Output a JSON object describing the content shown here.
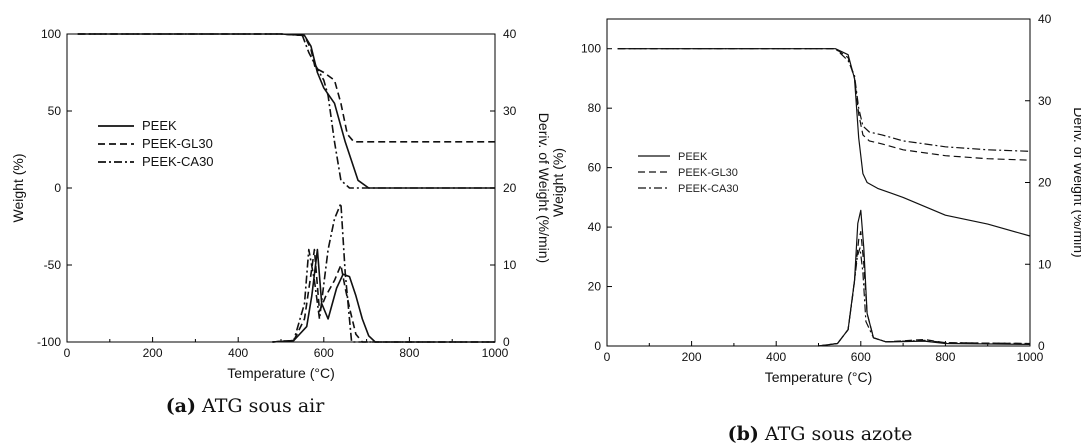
{
  "chart_data": [
    {
      "type": "line",
      "caption_label": "(a)",
      "caption_text": "ATG sous air",
      "xlabel": "Temperature (°C)",
      "ylabel": "Weight (%)",
      "y2label": "Deriv. of Weight (%/min)",
      "xlim": [
        0,
        1000
      ],
      "ylim": [
        -100,
        100
      ],
      "y2lim": [
        0,
        40
      ],
      "xticks": [
        "0",
        "200",
        "400",
        "600",
        "800",
        "1000"
      ],
      "yticks": [
        "-100",
        "-50",
        "0",
        "50",
        "100"
      ],
      "y2ticks": [
        "0",
        "10",
        "20",
        "30",
        "40"
      ],
      "grid": false,
      "legend": "middle-left",
      "series": [
        {
          "name": "PEEK",
          "style": "solid",
          "axis": "left",
          "x": [
            25,
            500,
            555,
            570,
            585,
            600,
            625,
            650,
            680,
            705,
            750,
            1000
          ],
          "y": [
            100,
            100,
            99,
            92,
            75,
            65,
            55,
            30,
            5,
            0,
            0,
            0
          ]
        },
        {
          "name": "PEEK-GL30",
          "style": "dashed",
          "axis": "left",
          "x": [
            25,
            500,
            555,
            570,
            580,
            600,
            625,
            640,
            655,
            670,
            1000
          ],
          "y": [
            100,
            100,
            99,
            90,
            78,
            75,
            70,
            55,
            35,
            30,
            30
          ]
        },
        {
          "name": "PEEK-CA30",
          "style": "dashdot",
          "axis": "left",
          "x": [
            25,
            500,
            550,
            565,
            580,
            600,
            610,
            625,
            640,
            660,
            1000
          ],
          "y": [
            100,
            100,
            99,
            88,
            80,
            70,
            60,
            30,
            5,
            0,
            0
          ]
        },
        {
          "name": "PEEK",
          "style": "solid",
          "axis": "right",
          "x": [
            480,
            530,
            560,
            572,
            585,
            595,
            610,
            630,
            645,
            660,
            675,
            690,
            705,
            720,
            1000
          ],
          "y": [
            0,
            0.2,
            2,
            6,
            12,
            5,
            3,
            7,
            8.8,
            8.5,
            6,
            3,
            0.8,
            0,
            0
          ]
        },
        {
          "name": "PEEK-GL30",
          "style": "dashed",
          "axis": "right",
          "x": [
            480,
            530,
            555,
            568,
            578,
            590,
            605,
            625,
            640,
            650,
            662,
            675,
            690,
            1000
          ],
          "y": [
            0,
            0.2,
            3,
            8,
            12,
            4,
            6,
            8,
            10,
            7,
            4,
            1,
            0,
            0
          ]
        },
        {
          "name": "PEEK-CA30",
          "style": "dashdot",
          "axis": "right",
          "x": [
            480,
            530,
            555,
            565,
            578,
            590,
            610,
            625,
            640,
            650,
            665,
            1000
          ],
          "y": [
            0,
            0.2,
            5,
            12,
            8,
            3,
            12,
            16,
            18,
            9,
            0,
            0
          ]
        }
      ]
    },
    {
      "type": "line",
      "caption_label": "(b)",
      "caption_text": "ATG sous azote",
      "xlabel": "Temperature (°C)",
      "ylabel": "Weight (%)",
      "y2label": "Deriv. of Weight (%/min)",
      "xlim": [
        0,
        1000
      ],
      "ylim": [
        0,
        110
      ],
      "y2lim": [
        0,
        40
      ],
      "xticks": [
        "0",
        "200",
        "400",
        "600",
        "800",
        "1000"
      ],
      "yticks": [
        "0",
        "20",
        "40",
        "60",
        "80",
        "100"
      ],
      "y2ticks": [
        "0",
        "10",
        "20",
        "30",
        "40"
      ],
      "grid": false,
      "legend": "middle-left",
      "series": [
        {
          "name": "PEEK",
          "style": "solid",
          "axis": "left",
          "x": [
            25,
            540,
            570,
            585,
            595,
            605,
            615,
            640,
            700,
            800,
            900,
            1000
          ],
          "y": [
            100,
            100,
            98,
            90,
            70,
            58,
            55,
            53,
            50,
            44,
            41,
            37
          ]
        },
        {
          "name": "PEEK-GL30",
          "style": "dashed",
          "axis": "left",
          "x": [
            25,
            540,
            570,
            585,
            595,
            605,
            620,
            650,
            700,
            800,
            900,
            1000
          ],
          "y": [
            100,
            100,
            97,
            90,
            78,
            71,
            69,
            68,
            66,
            64,
            63,
            62.5
          ]
        },
        {
          "name": "PEEK-CA30",
          "style": "dashdot",
          "axis": "left",
          "x": [
            25,
            540,
            570,
            585,
            595,
            605,
            620,
            650,
            700,
            800,
            900,
            1000
          ],
          "y": [
            100,
            100,
            96,
            91,
            80,
            74,
            72,
            71,
            69,
            67,
            66,
            65.5
          ]
        },
        {
          "name": "PEEK",
          "style": "solid",
          "axis": "right",
          "x": [
            500,
            545,
            570,
            585,
            593,
            600,
            607,
            615,
            630,
            660,
            750,
            800,
            1000
          ],
          "y": [
            0,
            0.3,
            2,
            8,
            15,
            16.6,
            12,
            4,
            1,
            0.5,
            0.6,
            0.3,
            0.2
          ]
        },
        {
          "name": "PEEK-GL30",
          "style": "dashed",
          "axis": "right",
          "x": [
            500,
            545,
            570,
            585,
            595,
            600,
            607,
            615,
            630,
            660,
            750,
            800,
            1000
          ],
          "y": [
            0,
            0.3,
            2,
            8,
            13,
            14,
            10,
            4,
            1,
            0.5,
            0.8,
            0.4,
            0.3
          ]
        },
        {
          "name": "PEEK-CA30",
          "style": "dashdot",
          "axis": "right",
          "x": [
            500,
            545,
            570,
            583,
            592,
            598,
            605,
            612,
            630,
            660,
            750,
            800,
            1000
          ],
          "y": [
            0,
            0.3,
            2,
            7,
            11,
            12,
            9,
            3,
            1,
            0.5,
            0.7,
            0.4,
            0.3
          ]
        }
      ]
    }
  ]
}
